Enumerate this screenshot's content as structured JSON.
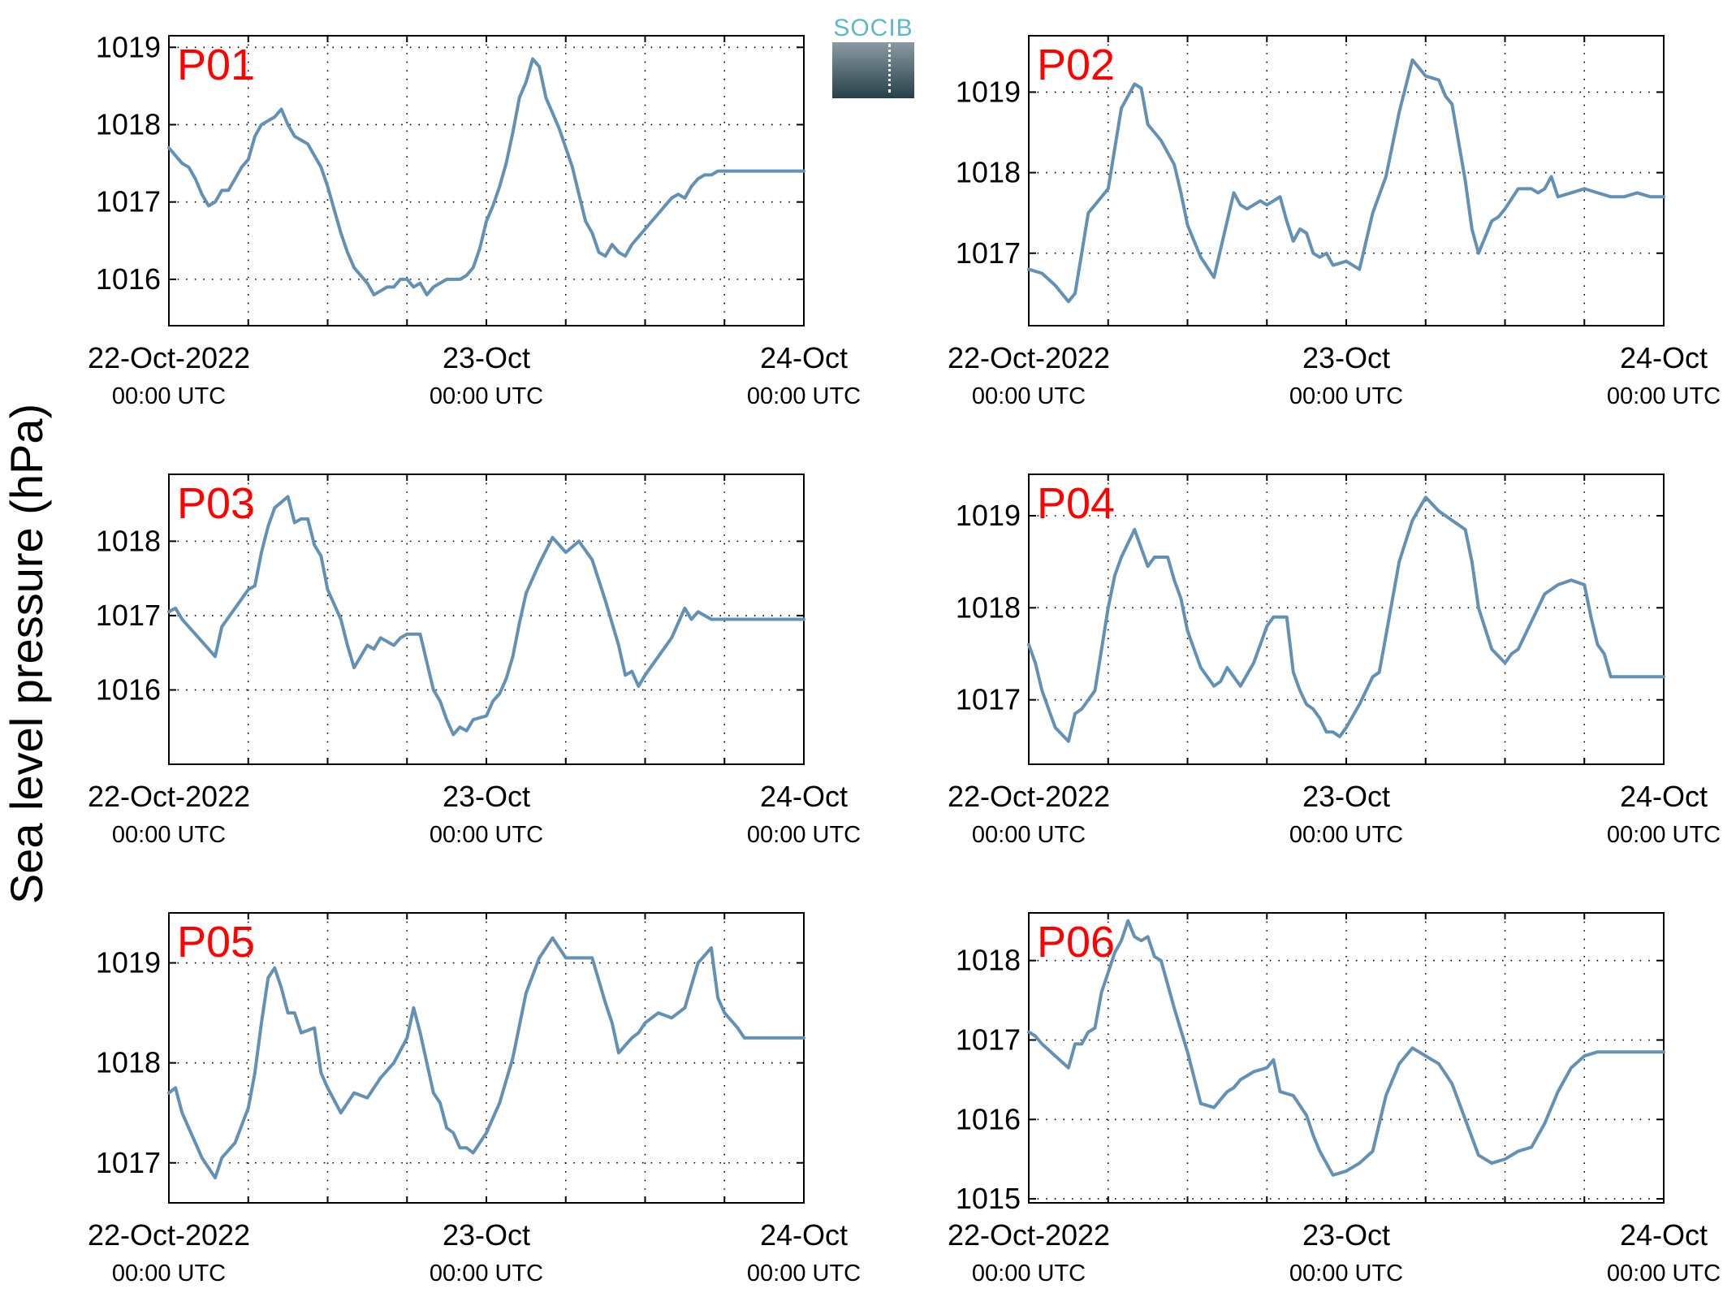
{
  "ylabel": "Sea level pressure (hPa)",
  "logo_text": "SOCIB",
  "colors": {
    "line": "#6391b6",
    "panel_title": "#ff0000",
    "axis": "#000000",
    "grid": "#000000"
  },
  "chart_data": [
    {
      "type": "line",
      "title": "P01",
      "x_tick_labels": [
        [
          "22-Oct-2022",
          "00:00 UTC"
        ],
        [
          "23-Oct",
          "00:00 UTC"
        ],
        [
          "24-Oct",
          "00:00 UTC"
        ]
      ],
      "x_ticks_hours": [
        0,
        24,
        48
      ],
      "xlim_hours": [
        0,
        48
      ],
      "yticks": [
        1016,
        1017,
        1018,
        1019
      ],
      "ylim": [
        1015.4,
        1019.15
      ],
      "grid": true,
      "x_hours": [
        0,
        0.5,
        1,
        1.5,
        2,
        2.5,
        3,
        3.5,
        4,
        4.5,
        5,
        5.5,
        6,
        6.5,
        7,
        7.5,
        8,
        8.5,
        9,
        9.5,
        10,
        10.5,
        11,
        11.5,
        12,
        12.5,
        13,
        13.5,
        14,
        14.5,
        15,
        15.5,
        16,
        16.5,
        17,
        17.5,
        18,
        18.5,
        19,
        19.5,
        20,
        20.5,
        21,
        21.5,
        22,
        22.5,
        23,
        23.5,
        24,
        24.5,
        25,
        25.5,
        26,
        26.5,
        27,
        27.5,
        28,
        28.5,
        29,
        29.5,
        30,
        30.5,
        31,
        31.5,
        32,
        32.5,
        33,
        33.5,
        34,
        34.5,
        35,
        35.5,
        36,
        36.5,
        37,
        37.5,
        38,
        38.5,
        39,
        39.5,
        40,
        40.5,
        41,
        41.5,
        42,
        42.5,
        43,
        43.5,
        44,
        44.5,
        45,
        45.5,
        46,
        46.5,
        47,
        47.5,
        48
      ],
      "values": [
        1017.7,
        1017.6,
        1017.5,
        1017.45,
        1017.3,
        1017.1,
        1016.95,
        1017,
        1017.15,
        1017.15,
        1017.3,
        1017.45,
        1017.55,
        1017.85,
        1018,
        1018.05,
        1018.1,
        1018.2,
        1018,
        1017.85,
        1017.8,
        1017.75,
        1017.6,
        1017.45,
        1017.2,
        1016.9,
        1016.6,
        1016.35,
        1016.15,
        1016.05,
        1015.95,
        1015.8,
        1015.85,
        1015.9,
        1015.9,
        1016,
        1016,
        1015.9,
        1015.95,
        1015.8,
        1015.9,
        1015.95,
        1016,
        1016,
        1016,
        1016.05,
        1016.15,
        1016.4,
        1016.75,
        1016.95,
        1017.2,
        1017.5,
        1017.9,
        1018.35,
        1018.55,
        1018.85,
        1018.75,
        1018.35,
        1018.15,
        1017.95,
        1017.7,
        1017.45,
        1017.1,
        1016.75,
        1016.6,
        1016.35,
        1016.3,
        1016.45,
        1016.35,
        1016.3,
        1016.45,
        1016.55,
        1016.65,
        1016.75,
        1016.85,
        1016.95,
        1017.05,
        1017.1,
        1017.05,
        1017.2,
        1017.3,
        1017.35,
        1017.35,
        1017.4,
        1017.4,
        1017.4,
        1017.4,
        1017.4,
        1017.4,
        1017.4,
        1017.4,
        1017.4,
        1017.4,
        1017.4,
        1017.4,
        1017.4,
        1017.4
      ]
    },
    {
      "type": "line",
      "title": "P02",
      "x_tick_labels": [
        [
          "22-Oct-2022",
          "00:00 UTC"
        ],
        [
          "23-Oct",
          "00:00 UTC"
        ],
        [
          "24-Oct",
          "00:00 UTC"
        ]
      ],
      "x_ticks_hours": [
        0,
        24,
        48
      ],
      "xlim_hours": [
        0,
        48
      ],
      "yticks": [
        1017,
        1018,
        1019
      ],
      "ylim": [
        1016.1,
        1019.7
      ],
      "grid": true,
      "x_hours": [
        0,
        1,
        2,
        3,
        3.5,
        4,
        4.5,
        5,
        6,
        6.5,
        7,
        8,
        8.5,
        9,
        10,
        11,
        11.5,
        12,
        13,
        14,
        15,
        15.5,
        16,
        16.5,
        17,
        17.5,
        18,
        19,
        19.5,
        20,
        20.5,
        21,
        21.5,
        22,
        22.5,
        23,
        24,
        25,
        26,
        27,
        28,
        29,
        30,
        31,
        31.5,
        32,
        33,
        33.5,
        34,
        35,
        35.5,
        36,
        37,
        38,
        38.5,
        39,
        39.5,
        40,
        41,
        42,
        43,
        44,
        44.5,
        45,
        46,
        47,
        48
      ],
      "values": [
        1016.8,
        1016.75,
        1016.6,
        1016.4,
        1016.5,
        1017,
        1017.5,
        1017.6,
        1017.8,
        1018.3,
        1018.8,
        1019.1,
        1019.05,
        1018.6,
        1018.4,
        1018.1,
        1017.75,
        1017.35,
        1016.95,
        1016.7,
        1017.4,
        1017.75,
        1017.6,
        1017.55,
        1017.6,
        1017.65,
        1017.6,
        1017.7,
        1017.4,
        1017.15,
        1017.3,
        1017.25,
        1017,
        1016.95,
        1017,
        1016.85,
        1016.9,
        1016.8,
        1017.5,
        1017.95,
        1018.75,
        1019.4,
        1019.2,
        1019.15,
        1018.95,
        1018.85,
        1017.9,
        1017.3,
        1017,
        1017.4,
        1017.45,
        1017.55,
        1017.8,
        1017.8,
        1017.75,
        1017.8,
        1017.95,
        1017.7,
        1017.75,
        1017.8,
        1017.75,
        1017.7,
        1017.7,
        1017.7,
        1017.75,
        1017.7,
        1017.7
      ]
    },
    {
      "type": "line",
      "title": "P03",
      "x_tick_labels": [
        [
          "22-Oct-2022",
          "00:00 UTC"
        ],
        [
          "23-Oct",
          "00:00 UTC"
        ],
        [
          "24-Oct",
          "00:00 UTC"
        ]
      ],
      "x_ticks_hours": [
        0,
        24,
        48
      ],
      "xlim_hours": [
        0,
        48
      ],
      "yticks": [
        1016,
        1017,
        1018
      ],
      "ylim": [
        1015.0,
        1018.9
      ],
      "grid": true,
      "x_hours": [
        0,
        0.5,
        1,
        2,
        3,
        3.5,
        4,
        5,
        6,
        6.5,
        7,
        7.5,
        8,
        9,
        9.5,
        10,
        10.5,
        11,
        11.5,
        12,
        13,
        13.5,
        14,
        15,
        15.5,
        16,
        17,
        17.5,
        18,
        18.5,
        19,
        20,
        20.5,
        21,
        21.5,
        22,
        22.5,
        23,
        24,
        24.5,
        25,
        25.5,
        26,
        26.5,
        27,
        28,
        29,
        30,
        31,
        32,
        33,
        34,
        34.5,
        35,
        35.5,
        36,
        37,
        38,
        39,
        39.5,
        40,
        41,
        42,
        43,
        44,
        44.5,
        45,
        46,
        46.5,
        47,
        48
      ],
      "values": [
        1017.05,
        1017.1,
        1016.95,
        1016.75,
        1016.55,
        1016.45,
        1016.85,
        1017.1,
        1017.35,
        1017.4,
        1017.85,
        1018.2,
        1018.45,
        1018.6,
        1018.25,
        1018.3,
        1018.3,
        1017.95,
        1017.8,
        1017.35,
        1016.95,
        1016.6,
        1016.3,
        1016.6,
        1016.55,
        1016.7,
        1016.6,
        1016.7,
        1016.75,
        1016.75,
        1016.75,
        1016,
        1015.85,
        1015.6,
        1015.4,
        1015.5,
        1015.45,
        1015.6,
        1015.65,
        1015.85,
        1015.95,
        1016.15,
        1016.45,
        1016.9,
        1017.3,
        1017.7,
        1018.05,
        1017.85,
        1018,
        1017.75,
        1017.2,
        1016.6,
        1016.2,
        1016.25,
        1016.05,
        1016.2,
        1016.45,
        1016.7,
        1017.1,
        1016.95,
        1017.05,
        1016.95,
        1016.95,
        1016.95,
        1016.95,
        1016.95,
        1016.95,
        1016.95,
        1016.95,
        1016.95,
        1016.95
      ]
    },
    {
      "type": "line",
      "title": "P04",
      "x_tick_labels": [
        [
          "22-Oct-2022",
          "00:00 UTC"
        ],
        [
          "23-Oct",
          "00:00 UTC"
        ],
        [
          "24-Oct",
          "00:00 UTC"
        ]
      ],
      "x_ticks_hours": [
        0,
        24,
        48
      ],
      "xlim_hours": [
        0,
        48
      ],
      "yticks": [
        1017,
        1018,
        1019
      ],
      "ylim": [
        1016.3,
        1019.45
      ],
      "grid": true,
      "x_hours": [
        0,
        0.5,
        1,
        1.5,
        2,
        3,
        3.5,
        4,
        5,
        6,
        6.5,
        7,
        8,
        9,
        9.5,
        10,
        10.5,
        11,
        11.5,
        12,
        13,
        14,
        14.5,
        15,
        15.5,
        16,
        17,
        18,
        18.5,
        19,
        19.5,
        20,
        20.5,
        21,
        21.5,
        22,
        22.5,
        23,
        23.5,
        24,
        25,
        26,
        26.5,
        27,
        28,
        29,
        30,
        31,
        32,
        33,
        33.5,
        34,
        35,
        36,
        36.5,
        37,
        38,
        39,
        40,
        41,
        42,
        42.5,
        43,
        43.5,
        44,
        44.5,
        45,
        46,
        47,
        48
      ],
      "values": [
        1017.6,
        1017.4,
        1017.1,
        1016.9,
        1016.7,
        1016.55,
        1016.85,
        1016.9,
        1017.1,
        1018,
        1018.35,
        1018.55,
        1018.85,
        1018.45,
        1018.55,
        1018.55,
        1018.55,
        1018.3,
        1018.1,
        1017.75,
        1017.35,
        1017.15,
        1017.2,
        1017.35,
        1017.25,
        1017.15,
        1017.4,
        1017.8,
        1017.9,
        1017.9,
        1017.9,
        1017.3,
        1017.1,
        1016.95,
        1016.9,
        1016.8,
        1016.65,
        1016.65,
        1016.6,
        1016.7,
        1016.95,
        1017.25,
        1017.3,
        1017.7,
        1018.5,
        1018.95,
        1019.2,
        1019.05,
        1018.95,
        1018.85,
        1018.5,
        1018,
        1017.55,
        1017.4,
        1017.5,
        1017.55,
        1017.85,
        1018.15,
        1018.25,
        1018.3,
        1018.25,
        1017.9,
        1017.6,
        1017.5,
        1017.25,
        1017.25,
        1017.25,
        1017.25,
        1017.25,
        1017.25
      ]
    },
    {
      "type": "line",
      "title": "P05",
      "x_tick_labels": [
        [
          "22-Oct-2022",
          "00:00 UTC"
        ],
        [
          "23-Oct",
          "00:00 UTC"
        ],
        [
          "24-Oct",
          "00:00 UTC"
        ]
      ],
      "x_ticks_hours": [
        0,
        24,
        48
      ],
      "xlim_hours": [
        0,
        48
      ],
      "yticks": [
        1017,
        1018,
        1019
      ],
      "ylim": [
        1016.6,
        1019.5
      ],
      "grid": true,
      "x_hours": [
        0,
        0.5,
        1,
        1.5,
        2,
        2.5,
        3,
        3.5,
        4,
        5,
        6,
        6.5,
        7,
        7.5,
        8,
        8.5,
        9,
        9.5,
        10,
        11,
        11.5,
        12,
        13,
        13.5,
        14,
        15,
        16,
        17,
        18,
        18.5,
        19,
        20,
        20.5,
        21,
        21.5,
        22,
        22.5,
        23,
        24,
        25,
        26,
        27,
        28,
        29,
        30,
        31,
        32,
        33,
        33.5,
        34,
        35,
        35.5,
        36,
        37,
        38,
        39,
        40,
        41,
        41.5,
        42,
        43,
        43.5,
        44,
        44.5,
        45,
        46,
        46.5,
        47,
        48
      ],
      "values": [
        1017.7,
        1017.75,
        1017.5,
        1017.35,
        1017.2,
        1017.05,
        1016.95,
        1016.85,
        1017.05,
        1017.2,
        1017.55,
        1017.9,
        1018.4,
        1018.85,
        1018.95,
        1018.75,
        1018.5,
        1018.5,
        1018.3,
        1018.35,
        1017.9,
        1017.75,
        1017.5,
        1017.6,
        1017.7,
        1017.65,
        1017.85,
        1018,
        1018.25,
        1018.55,
        1018.3,
        1017.7,
        1017.6,
        1017.35,
        1017.3,
        1017.15,
        1017.15,
        1017.1,
        1017.3,
        1017.6,
        1018.05,
        1018.7,
        1019.05,
        1019.25,
        1019.05,
        1019.05,
        1019.05,
        1018.6,
        1018.4,
        1018.1,
        1018.25,
        1018.3,
        1018.4,
        1018.5,
        1018.45,
        1018.55,
        1019,
        1019.15,
        1018.65,
        1018.5,
        1018.35,
        1018.25,
        1018.25,
        1018.25,
        1018.25,
        1018.25,
        1018.25,
        1018.25,
        1018.25
      ]
    },
    {
      "type": "line",
      "title": "P06",
      "x_tick_labels": [
        [
          "22-Oct-2022",
          "00:00 UTC"
        ],
        [
          "23-Oct",
          "00:00 UTC"
        ],
        [
          "24-Oct",
          "00:00 UTC"
        ]
      ],
      "x_ticks_hours": [
        0,
        24,
        48
      ],
      "xlim_hours": [
        0,
        48
      ],
      "yticks": [
        1015,
        1016,
        1017,
        1018
      ],
      "ylim": [
        1014.95,
        1018.6
      ],
      "grid": true,
      "x_hours": [
        0,
        0.5,
        1,
        2,
        3,
        3.5,
        4,
        4.5,
        5,
        5.5,
        6,
        6.5,
        7,
        7.5,
        8,
        8.5,
        9,
        9.5,
        10,
        11,
        12,
        13,
        14,
        14.5,
        15,
        15.5,
        16,
        17,
        18,
        18.5,
        19,
        20,
        21,
        21.5,
        22,
        23,
        24,
        25,
        26,
        27,
        28,
        29,
        30,
        31,
        32,
        33,
        34,
        35,
        36,
        37,
        38,
        39,
        40,
        41,
        42,
        43,
        44,
        45,
        45.5,
        46,
        46.5,
        47,
        47.5,
        48
      ],
      "values": [
        1017.1,
        1017.05,
        1016.95,
        1016.8,
        1016.65,
        1016.95,
        1016.95,
        1017.1,
        1017.15,
        1017.6,
        1017.85,
        1018.1,
        1018.25,
        1018.5,
        1018.3,
        1018.25,
        1018.3,
        1018.05,
        1018,
        1017.4,
        1016.85,
        1016.2,
        1016.15,
        1016.25,
        1016.35,
        1016.4,
        1016.5,
        1016.6,
        1016.65,
        1016.75,
        1016.35,
        1016.3,
        1016.05,
        1015.8,
        1015.6,
        1015.3,
        1015.35,
        1015.45,
        1015.6,
        1016.3,
        1016.7,
        1016.9,
        1016.8,
        1016.7,
        1016.45,
        1016,
        1015.55,
        1015.45,
        1015.5,
        1015.6,
        1015.65,
        1015.95,
        1016.35,
        1016.65,
        1016.8,
        1016.85,
        1016.85,
        1016.85,
        1016.85,
        1016.85,
        1016.85,
        1016.85,
        1016.85,
        1016.85
      ]
    }
  ]
}
